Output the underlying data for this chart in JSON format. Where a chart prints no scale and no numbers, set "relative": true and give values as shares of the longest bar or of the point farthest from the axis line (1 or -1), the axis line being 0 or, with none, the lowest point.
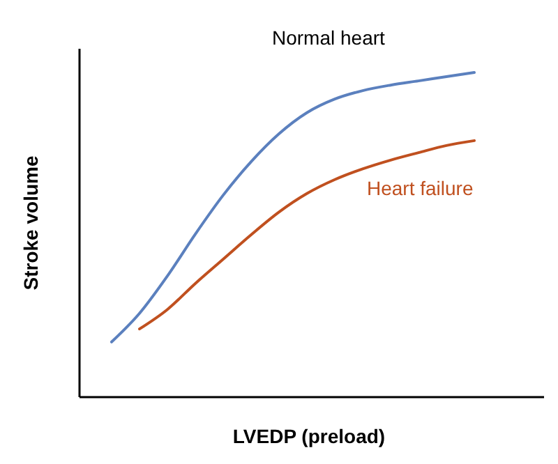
{
  "chart_data": {
    "type": "line",
    "relative": true,
    "xlabel": "LVEDP (preload)",
    "ylabel": "Stroke volume",
    "categories": [
      null,
      null,
      null,
      null,
      null,
      null,
      null,
      null,
      null,
      null,
      null,
      null,
      null,
      null
    ],
    "marker": "none",
    "line_style": "solid",
    "series": [
      {
        "name": "Normal heart",
        "color": "#5b80be",
        "values": [
          0.17,
          0.258,
          0.373,
          0.502,
          0.622,
          0.725,
          0.811,
          0.876,
          0.918,
          0.944,
          0.961,
          0.974,
          0.987,
          1
        ]
      },
      {
        "name": "Heart failure",
        "color": "#c0501f",
        "values": [
          null,
          0.21,
          0.27,
          0.35,
          0.425,
          0.5,
          0.57,
          0.627,
          0.67,
          0.703,
          0.73,
          0.753,
          0.775,
          0.79
        ]
      }
    ]
  }
}
